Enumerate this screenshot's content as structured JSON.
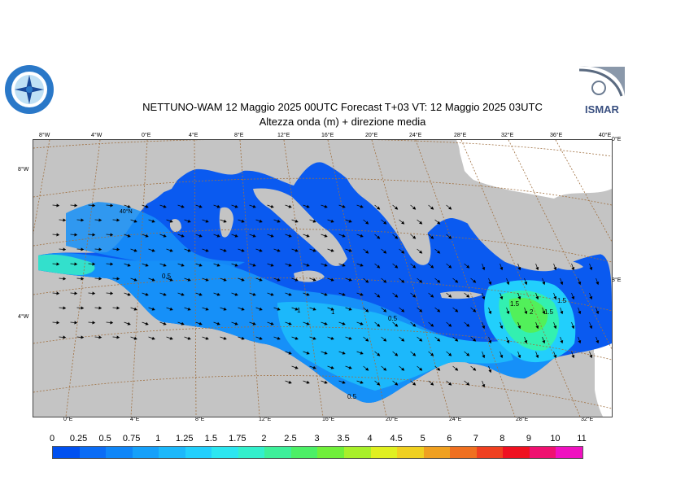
{
  "title": {
    "line1": "NETTUNO-WAM  12   Maggio  2025 00UTC Forecast T+03 VT: 12   Maggio  2025 03UTC",
    "line2": "Altezza onda (m) + direzione media"
  },
  "map": {
    "top_ticks": [
      "8°W",
      "4°W",
      "0°E",
      "4°E",
      "8°E",
      "12°E",
      "16°E",
      "20°E",
      "24°E",
      "28°E",
      "32°E",
      "36°E",
      "40°E"
    ],
    "bottom_ticks": [
      "0°E",
      "4°E",
      "8°E",
      "12°E",
      "16°E",
      "20°E",
      "24°E",
      "28°E",
      "32°E"
    ],
    "left_ticks": [
      "8°W",
      "4°W"
    ],
    "right_ticks": [
      "0°E",
      "8°E"
    ],
    "inner_label": "40°N",
    "contour_labels": [
      "0.5",
      "1",
      "1",
      "0.5",
      "0.5",
      "1.5",
      "2",
      "1.5",
      "1.5"
    ]
  },
  "legend": {
    "values": [
      "0",
      "0.25",
      "0.5",
      "0.75",
      "1",
      "1.25",
      "1.5",
      "1.75",
      "2",
      "2.5",
      "3",
      "3.5",
      "4",
      "4.5",
      "5",
      "6",
      "7",
      "8",
      "9",
      "10",
      "11"
    ],
    "colors": [
      "#0050f0",
      "#0a6cf5",
      "#0f86f8",
      "#16a0fa",
      "#1cb8fb",
      "#22cffc",
      "#2ce6f0",
      "#33f0cc",
      "#3df09a",
      "#4cf066",
      "#70f03a",
      "#a8f02a",
      "#e0f020",
      "#f0d020",
      "#f0a020",
      "#f07020",
      "#f04020",
      "#f01020",
      "#f01070",
      "#f010c0"
    ]
  },
  "logos": {
    "left": "NETTUNO",
    "right": "ISMAR"
  }
}
